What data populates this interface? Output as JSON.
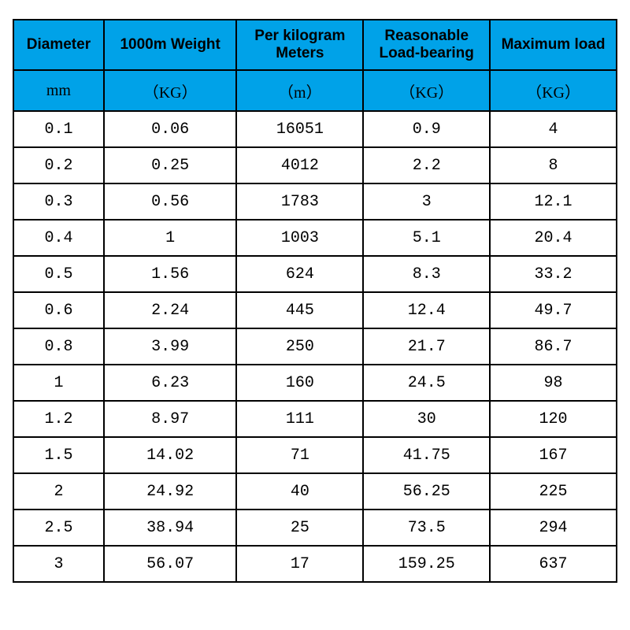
{
  "table": {
    "type": "table",
    "header_bg": "#00a2e8",
    "border_color": "#000000",
    "background_color": "#ffffff",
    "header_font_family": "Arial",
    "header_font_weight": "bold",
    "header_font_size_pt": 14,
    "units_font_family": "SimSun",
    "units_font_size_pt": 15,
    "body_font_family": "SimSun",
    "body_font_size_pt": 15,
    "col_widths_pct": [
      15,
      22,
      21,
      21,
      21
    ],
    "columns": [
      "Diameter",
      "1000m Weight",
      "Per kilogram\nMeters",
      "Reasonable\nLoad-bearing",
      "Maximum load"
    ],
    "units": [
      "mm",
      "（KG）",
      "（m）",
      "（KG）",
      "（KG）"
    ],
    "rows": [
      [
        "0.1",
        "0.06",
        "16051",
        "0.9",
        "4"
      ],
      [
        "0.2",
        "0.25",
        "4012",
        "2.2",
        "8"
      ],
      [
        "0.3",
        "0.56",
        "1783",
        "3",
        "12.1"
      ],
      [
        "0.4",
        "1",
        "1003",
        "5.1",
        "20.4"
      ],
      [
        "0.5",
        "1.56",
        "624",
        "8.3",
        "33.2"
      ],
      [
        "0.6",
        "2.24",
        "445",
        "12.4",
        "49.7"
      ],
      [
        "0.8",
        "3.99",
        "250",
        "21.7",
        "86.7"
      ],
      [
        "1",
        "6.23",
        "160",
        "24.5",
        "98"
      ],
      [
        "1.2",
        "8.97",
        "111",
        "30",
        "120"
      ],
      [
        "1.5",
        "14.02",
        "71",
        "41.75",
        "167"
      ],
      [
        "2",
        "24.92",
        "40",
        "56.25",
        "225"
      ],
      [
        "2.5",
        "38.94",
        "25",
        "73.5",
        "294"
      ],
      [
        "3",
        "56.07",
        "17",
        "159.25",
        "637"
      ]
    ]
  }
}
